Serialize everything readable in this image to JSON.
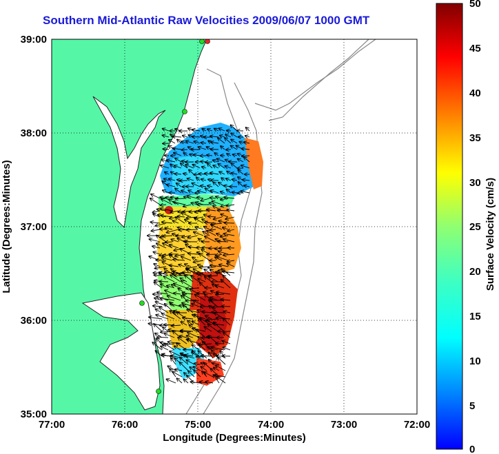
{
  "title": "Southern Mid-Atlantic Raw Velocities 2009/06/07 1000 GMT",
  "x_axis": {
    "label": "Longitude (Degrees:Minutes)",
    "ticks": [
      "77:00",
      "76:00",
      "75:00",
      "74:00",
      "73:00",
      "72:00"
    ]
  },
  "y_axis": {
    "label": "Latitude (Degrees:Minutes)",
    "ticks": [
      "39:00",
      "38:00",
      "37:00",
      "36:00",
      "35:00"
    ]
  },
  "colorbar": {
    "label": "Surface Velocity (cm/s)",
    "ticks": [
      "50",
      "45",
      "40",
      "35",
      "30",
      "25",
      "20",
      "15",
      "10",
      "5",
      "0"
    ],
    "min": 0,
    "max": 50,
    "colormap": "jet"
  },
  "colors": {
    "land": "#55f7a7",
    "title": "#1a1ad8",
    "station_marker": "#22dd22",
    "station_marker_red": "#ee2222"
  },
  "map_extent": {
    "lon_west": -77,
    "lon_east": -72,
    "lat_south": 35,
    "lat_north": 39
  },
  "grid": true
}
